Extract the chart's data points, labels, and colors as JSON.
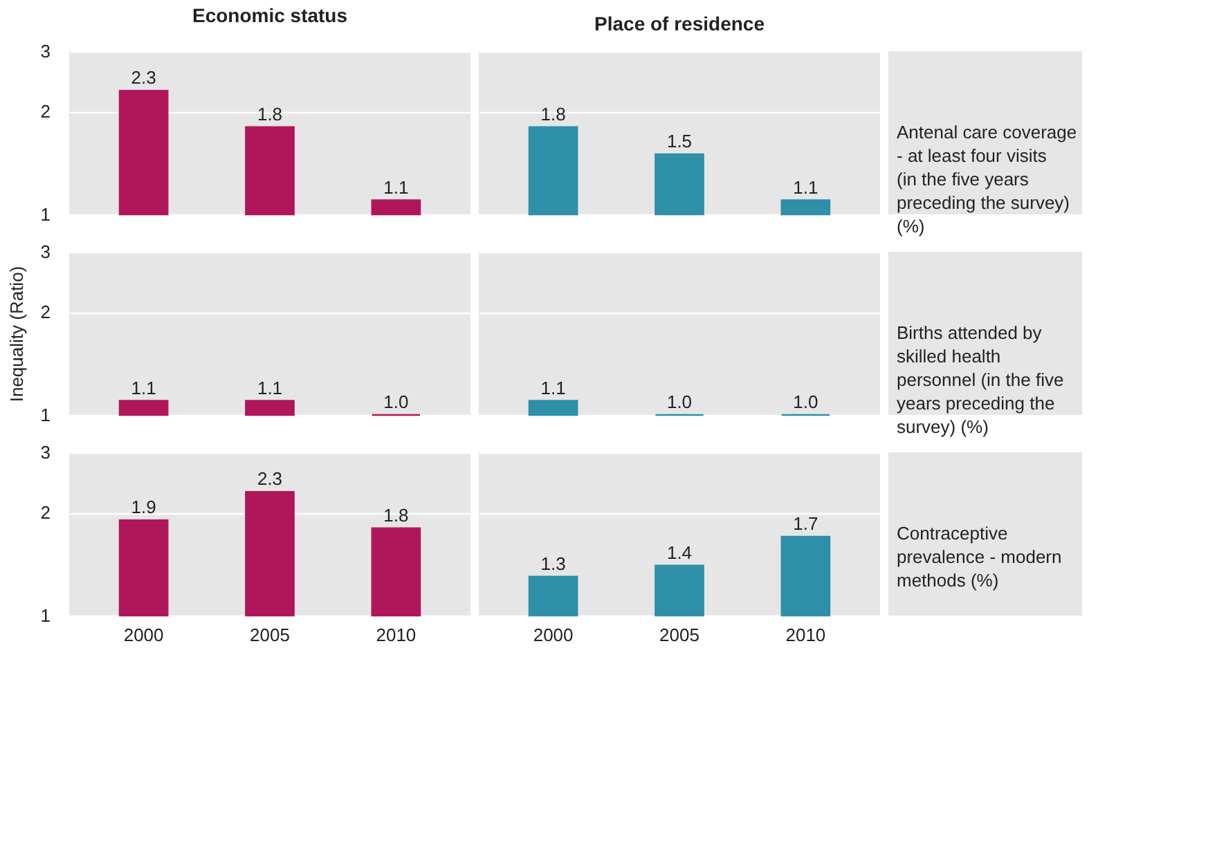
{
  "chart_data": [
    {
      "type": "bar",
      "title": "Economic status",
      "categories": [
        "2000",
        "2005",
        "2010"
      ],
      "values": [
        2.3,
        1.8,
        1.1
      ],
      "value_labels": [
        "2.3",
        "1.8",
        "1.1"
      ],
      "color": "#b0175a",
      "ylim": [
        1,
        3
      ],
      "yticks": [
        1,
        2,
        3
      ],
      "log": true,
      "grid": "y",
      "tick_labels": "y"
    },
    {
      "type": "bar",
      "title": "Place of residence",
      "categories": [
        "2000",
        "2005",
        "2010"
      ],
      "values": [
        1.8,
        1.5,
        1.1
      ],
      "value_labels": [
        "1.8",
        "1.5",
        "1.1"
      ],
      "color": "#2e8fa8",
      "ylim": [
        1,
        3
      ],
      "yticks": [
        1,
        2,
        3
      ],
      "log": true,
      "grid": "y",
      "tick_labels": false,
      "annotations": [
        "Antenal care coverage - at least four visits (in the five years preceding the survey)  (%)"
      ]
    },
    {
      "type": "bar",
      "ylabel": "Inequality (Ratio)",
      "categories": [
        "2000",
        "2005",
        "2010"
      ],
      "values": [
        1.1,
        1.1,
        1.0
      ],
      "value_labels": [
        "1.1",
        "1.1",
        "1.0"
      ],
      "color": "#b0175a",
      "ylim": [
        1,
        3
      ],
      "yticks": [
        1,
        2,
        3
      ],
      "log": true,
      "grid": "y",
      "tick_labels": "y"
    },
    {
      "type": "bar",
      "categories": [
        "2000",
        "2005",
        "2010"
      ],
      "values": [
        1.1,
        1.0,
        1.0
      ],
      "value_labels": [
        "1.1",
        "1.0",
        "1.0"
      ],
      "color": "#2e8fa8",
      "ylim": [
        1,
        3
      ],
      "yticks": [
        1,
        2,
        3
      ],
      "log": true,
      "grid": "y",
      "tick_labels": false,
      "annotations": [
        "Births attended by skilled health personnel (in the five years preceding the survey)  (%)"
      ]
    },
    {
      "type": "bar",
      "categories": [
        "2000",
        "2005",
        "2010"
      ],
      "values": [
        1.9,
        2.3,
        1.8
      ],
      "value_labels": [
        "1.9",
        "2.3",
        "1.8"
      ],
      "color": "#b0175a",
      "ylim": [
        1,
        3
      ],
      "yticks": [
        1,
        2,
        3
      ],
      "log": true,
      "grid": "y"
    },
    {
      "type": "bar",
      "categories": [
        "2000",
        "2005",
        "2010"
      ],
      "values": [
        1.3,
        1.4,
        1.7
      ],
      "value_labels": [
        "1.3",
        "1.4",
        "1.7"
      ],
      "color": "#2e8fa8",
      "ylim": [
        1,
        3
      ],
      "yticks": [
        1,
        2,
        3
      ],
      "log": true,
      "grid": "y",
      "tick_labels": "x",
      "annotations": [
        "Contraceptive prevalence - modern methods (%)"
      ]
    }
  ]
}
